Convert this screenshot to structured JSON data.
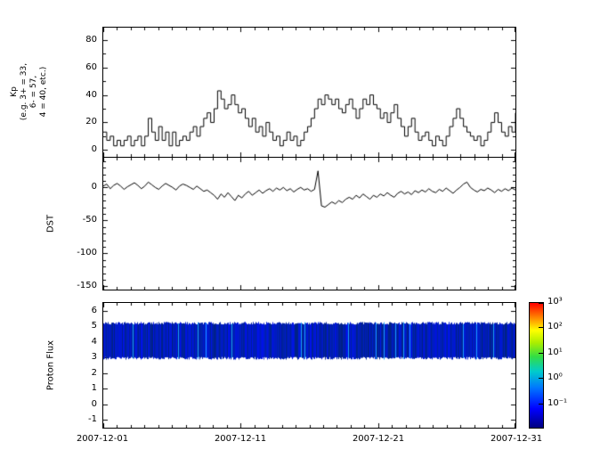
{
  "figure": {
    "background": "#ffffff",
    "frame_color": "#000000",
    "line_color": "#000000"
  },
  "x_axis": {
    "tick_labels": [
      "2007-12-01",
      "2007-12-11",
      "2007-12-21",
      "2007-12-31"
    ],
    "days_shown": 30,
    "minor_tick_interval_days": 1
  },
  "chart_data": [
    {
      "type": "line",
      "style": "step",
      "ylabel": "Kp\n(e.g. 3+ = 33,\n6- = 57,\n4 = 40, etc.)",
      "ylim": [
        -5,
        89
      ],
      "yticks": [
        0,
        20,
        40,
        60,
        80
      ],
      "y_minor_step": 10,
      "x_start": "2007-12-01",
      "x_end": "2007-12-31",
      "points_per_day": 4,
      "values": [
        13,
        7,
        10,
        3,
        7,
        3,
        7,
        10,
        3,
        7,
        10,
        3,
        10,
        23,
        13,
        7,
        17,
        7,
        13,
        3,
        13,
        3,
        7,
        10,
        7,
        13,
        17,
        10,
        17,
        23,
        27,
        20,
        30,
        43,
        37,
        30,
        33,
        40,
        33,
        27,
        30,
        23,
        17,
        23,
        13,
        17,
        10,
        20,
        13,
        7,
        10,
        3,
        7,
        13,
        7,
        10,
        3,
        7,
        13,
        17,
        23,
        30,
        37,
        33,
        40,
        37,
        33,
        37,
        30,
        27,
        33,
        37,
        30,
        23,
        30,
        37,
        33,
        40,
        33,
        30,
        23,
        27,
        20,
        27,
        33,
        23,
        17,
        10,
        17,
        23,
        13,
        7,
        10,
        13,
        7,
        3,
        10,
        7,
        3,
        10,
        17,
        23,
        30,
        23,
        17,
        13,
        10,
        7,
        10,
        3,
        7,
        13,
        20,
        27,
        20,
        13,
        10,
        17,
        13,
        27
      ]
    },
    {
      "type": "line",
      "style": "plain",
      "ylabel": "DST",
      "ylim": [
        -155,
        45
      ],
      "yticks": [
        -150,
        -100,
        -50,
        0
      ],
      "y_minor_step": 10,
      "x_start": "2007-12-01",
      "x_end": "2007-12-31",
      "points_per_day": 4,
      "values": [
        2,
        5,
        -2,
        3,
        6,
        2,
        -3,
        1,
        4,
        7,
        3,
        -2,
        2,
        8,
        4,
        0,
        -3,
        2,
        6,
        3,
        0,
        -4,
        2,
        5,
        3,
        0,
        -3,
        2,
        -2,
        -6,
        -4,
        -8,
        -12,
        -18,
        -10,
        -15,
        -8,
        -14,
        -20,
        -12,
        -16,
        -10,
        -6,
        -12,
        -8,
        -4,
        -9,
        -5,
        -2,
        -6,
        -1,
        -4,
        0,
        -5,
        -2,
        -7,
        -3,
        0,
        -4,
        -2,
        -6,
        -3,
        25,
        -28,
        -30,
        -26,
        -22,
        -25,
        -20,
        -23,
        -18,
        -15,
        -18,
        -12,
        -16,
        -10,
        -14,
        -18,
        -12,
        -15,
        -10,
        -13,
        -8,
        -12,
        -15,
        -9,
        -6,
        -10,
        -7,
        -11,
        -5,
        -8,
        -4,
        -7,
        -2,
        -6,
        -8,
        -3,
        -6,
        -1,
        -5,
        -9,
        -4,
        0,
        5,
        8,
        0,
        -4,
        -7,
        -3,
        -5,
        -1,
        -4,
        -8,
        -3,
        -6,
        -2,
        -5,
        -1,
        -4
      ]
    },
    {
      "type": "heatmap",
      "ylabel": "Proton Flux",
      "ylim": [
        -1.5,
        6.5
      ],
      "yticks": [
        -1,
        0,
        1,
        2,
        3,
        4,
        5,
        6
      ],
      "band_y_range": [
        2.95,
        5.2
      ],
      "band_value_range_log10": [
        -1.2,
        -0.5
      ],
      "band_base_colors": [
        "#000099",
        "#2244ee",
        "#00aaff"
      ],
      "colorbar": {
        "scale": "log",
        "tick_labels": [
          "10³",
          "10²",
          "10¹",
          "10⁰",
          "10⁻¹"
        ],
        "tick_exponents": [
          3,
          2,
          1,
          0,
          -1
        ],
        "range_exponents": [
          -2,
          3
        ],
        "stops": [
          {
            "pos": 0.0,
            "color": "#000080"
          },
          {
            "pos": 0.15,
            "color": "#0000ff"
          },
          {
            "pos": 0.32,
            "color": "#0077ff"
          },
          {
            "pos": 0.45,
            "color": "#00cccc"
          },
          {
            "pos": 0.57,
            "color": "#33dd44"
          },
          {
            "pos": 0.68,
            "color": "#aaee00"
          },
          {
            "pos": 0.78,
            "color": "#ffff00"
          },
          {
            "pos": 0.88,
            "color": "#ff8800"
          },
          {
            "pos": 1.0,
            "color": "#ff0000"
          }
        ]
      }
    }
  ]
}
